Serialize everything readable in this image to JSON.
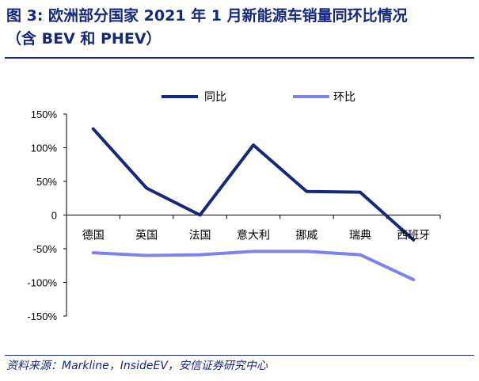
{
  "title_line1": "图 3: 欧洲部分国家 2021 年 1 月新能源车销量同环比情况",
  "title_line2": "（含 BEV 和 PHEV）",
  "source": "资料来源：Markline，InsideEV，安信证券研究中心",
  "colors": {
    "yoy": "#16287a",
    "mom": "#8080ee",
    "title": "#16287a"
  },
  "chart_data": {
    "type": "line",
    "categories": [
      "德国",
      "英国",
      "法国",
      "意大利",
      "挪威",
      "瑞典",
      "西班牙"
    ],
    "series": [
      {
        "name": "同比",
        "values": [
          128,
          40,
          0,
          104,
          35,
          34,
          -37
        ]
      },
      {
        "name": "环比",
        "values": [
          -56,
          -60,
          -59,
          -54,
          -54,
          -59,
          -96
        ]
      }
    ],
    "yticks": [
      "150%",
      "100%",
      "50%",
      "0",
      "-50%",
      "-100%",
      "-150%"
    ],
    "ylim": [
      -150,
      150
    ],
    "ytick_step": 50,
    "legend_position": "top",
    "grid": false
  }
}
